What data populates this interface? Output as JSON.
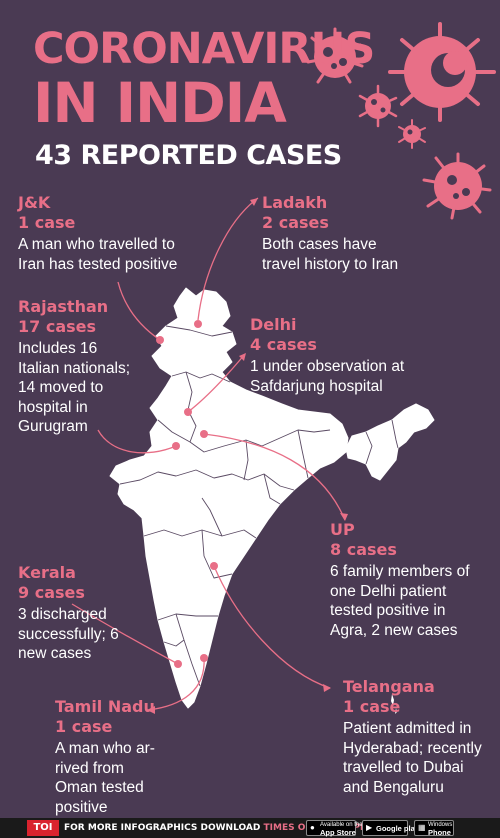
{
  "header": {
    "title_line1": "CORONAVIRUS",
    "title_line2": "IN INDIA",
    "subtitle": "43 REPORTED CASES"
  },
  "states": {
    "jk": {
      "name": "J&K",
      "count": "1 case",
      "desc": "A man who travelled to Iran has tested positive"
    },
    "ladakh": {
      "name": "Ladakh",
      "count": "2 cases",
      "desc": "Both cases have travel history to Iran"
    },
    "rajasthan": {
      "name": "Rajasthan",
      "count": "17 cases",
      "desc": "Includes 16 Italian nationals; 14 moved to hospital in Gurugram"
    },
    "delhi": {
      "name": "Delhi",
      "count": "4 cases",
      "desc": "1 under observation at Safdarjung hospital"
    },
    "up": {
      "name": "UP",
      "count": "8 cases",
      "desc": "6 family members of one Delhi patient tested positive in Agra, 2 new cases"
    },
    "kerala": {
      "name": "Kerala",
      "count": "9 cases",
      "desc": "3 discharged successfully; 6 new cases"
    },
    "telangana": {
      "name": "Telangana",
      "count": "1 case",
      "desc": "Patient admitted in Hyderabad; recently travelled to Dubai and Bengaluru"
    },
    "tamil_nadu": {
      "name": "Tamil Nadu",
      "count": "1 case",
      "desc": "A man who ar-rived from Oman tested positive"
    }
  },
  "footer": {
    "logo": "TOI",
    "text_prefix": "FOR MORE  INFOGRAPHICS DOWNLOAD",
    "text_highlight": "TIMES OF INDIA  APP",
    "badges": [
      {
        "small": "Available on the",
        "big": "App Store",
        "icon": "apple-icon"
      },
      {
        "small": "",
        "big": "Google play",
        "icon": "play-icon"
      },
      {
        "small": "Windows",
        "big": "Phone",
        "icon": "windows-icon"
      }
    ]
  },
  "colors": {
    "background": "#4a3a53",
    "accent": "#e86f87",
    "map_fill": "#ffffff",
    "footer": "#1a1a1a"
  }
}
